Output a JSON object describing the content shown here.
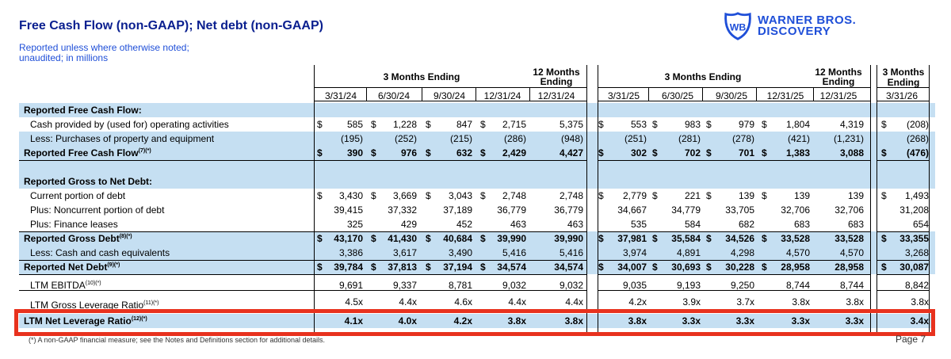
{
  "title": "Free Cash Flow (non-GAAP); Net debt (non-GAAP)",
  "subtitle_lines": [
    "Reported unless where otherwise noted;",
    "unaudited; in millions"
  ],
  "logo": {
    "line1": "WARNER BROS.",
    "line2": "DISCOVERY",
    "icon": "wb-shield-icon",
    "color": "#1f4fd8"
  },
  "header": {
    "group_2024": "3 Months Ending",
    "ltm_2024": [
      "12 Months",
      "Ending"
    ],
    "group_2025": "3 Months Ending",
    "ltm_2025": [
      "12 Months",
      "Ending"
    ],
    "group_2026": [
      "3 Months",
      "Ending"
    ],
    "dates": [
      "3/31/24",
      "6/30/24",
      "9/30/24",
      "12/31/24",
      "12/31/24",
      "3/31/25",
      "6/30/25",
      "9/30/25",
      "12/31/25",
      "12/31/25",
      "3/31/26"
    ]
  },
  "rows": [
    {
      "label": "Reported Free Cash Flow:",
      "values": [],
      "style": "section"
    },
    {
      "label": "Cash provided by (used for) operating activities",
      "dollar": true,
      "values": [
        "585",
        "1,228",
        "847",
        "2,715",
        "5,375",
        "553",
        "983",
        "979",
        "1,804",
        "4,319",
        "(208)"
      ]
    },
    {
      "label": "Less: Purchases of property and equipment",
      "values": [
        "(195)",
        "(252)",
        "(215)",
        "(286)",
        "(948)",
        "(251)",
        "(281)",
        "(278)",
        "(421)",
        "(1,231)",
        "(268)"
      ]
    },
    {
      "label": "Reported Free Cash Flow",
      "sup": "(7)(*)",
      "bold": true,
      "dollar": true,
      "values": [
        "390",
        "976",
        "632",
        "2,429",
        "4,427",
        "302",
        "702",
        "701",
        "1,383",
        "3,088",
        "(476)"
      ]
    },
    {
      "label": "",
      "values": [],
      "style": "blank"
    },
    {
      "label": "Reported Gross to Net Debt:",
      "values": [],
      "style": "section"
    },
    {
      "label": "Current portion of debt",
      "dollar": true,
      "values": [
        "3,430",
        "3,669",
        "3,043",
        "2,748",
        "2,748",
        "2,779",
        "221",
        "139",
        "139",
        "139",
        "1,493"
      ]
    },
    {
      "label": "Plus: Noncurrent portion of debt",
      "values": [
        "39,415",
        "37,332",
        "37,189",
        "36,779",
        "36,779",
        "34,667",
        "34,779",
        "33,705",
        "32,706",
        "32,706",
        "31,208"
      ]
    },
    {
      "label": "Plus: Finance leases",
      "values": [
        "325",
        "429",
        "452",
        "463",
        "463",
        "535",
        "584",
        "682",
        "683",
        "683",
        "654"
      ]
    },
    {
      "label": "Reported Gross Debt",
      "sup": "(8)(*)",
      "bold": true,
      "dollar": true,
      "values": [
        "43,170",
        "41,430",
        "40,684",
        "39,990",
        "39,990",
        "37,981",
        "35,584",
        "34,526",
        "33,528",
        "33,528",
        "33,355"
      ]
    },
    {
      "label": "Less: Cash and cash equivalents",
      "values": [
        "3,386",
        "3,617",
        "3,490",
        "5,416",
        "5,416",
        "3,974",
        "4,891",
        "4,298",
        "4,570",
        "4,570",
        "3,268"
      ]
    },
    {
      "label": "Reported Net Debt",
      "sup": "(9)(*)",
      "bold": true,
      "dollar": true,
      "values": [
        "39,784",
        "37,813",
        "37,194",
        "34,574",
        "34,574",
        "34,007",
        "30,693",
        "30,228",
        "28,958",
        "28,958",
        "30,087"
      ]
    },
    {
      "label": "LTM EBITDA",
      "sup": "(10)(*)",
      "values": [
        "9,691",
        "9,337",
        "8,781",
        "9,032",
        "9,032",
        "9,035",
        "9,193",
        "9,250",
        "8,744",
        "8,744",
        "8,842"
      ]
    },
    {
      "label": "LTM Gross Leverage Ratio",
      "sup": "(11)(*)",
      "values": [
        "4.5x",
        "4.4x",
        "4.6x",
        "4.4x",
        "4.4x",
        "4.2x",
        "3.9x",
        "3.7x",
        "3.8x",
        "3.8x",
        "3.8x"
      ],
      "style": "clipped"
    },
    {
      "label": "LTM Net Leverage Ratio",
      "sup": "(12)(*)",
      "bold": true,
      "values": [
        "4.1x",
        "4.0x",
        "4.2x",
        "3.8x",
        "3.8x",
        "3.8x",
        "3.3x",
        "3.3x",
        "3.3x",
        "3.3x",
        "3.4x"
      ],
      "style": "highlight"
    }
  ],
  "footnote": "(*) A non-GAAP financial measure; see the Notes and Definitions section for additional details.",
  "page": "Page 7",
  "colors": {
    "shade": "#c5dff2",
    "title": "#0a1f8f",
    "highlight_border": "#e8321e"
  }
}
